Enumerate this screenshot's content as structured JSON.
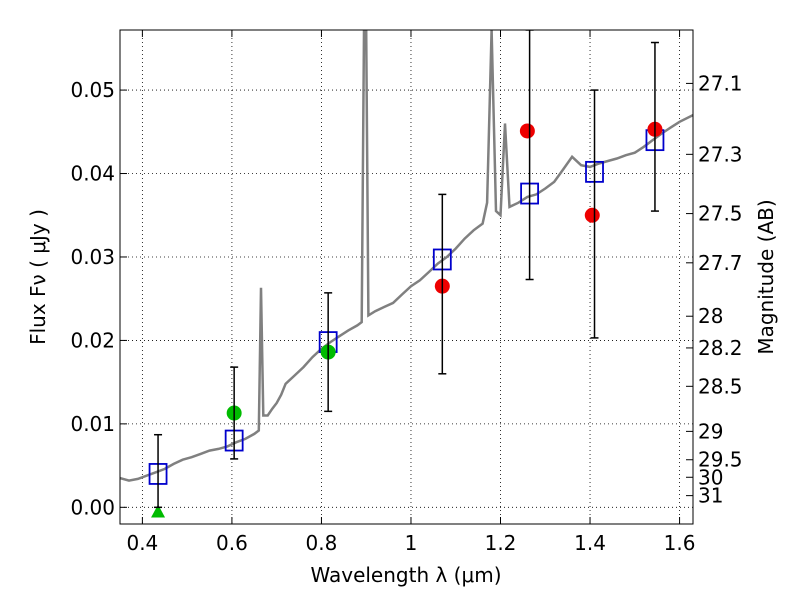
{
  "chart_data": {
    "type": "scatter",
    "title": "",
    "xlabel": "Wavelength  λ (μm)",
    "ylabel": "Flux  Fν  ( μJy )",
    "y2label": "Magnitude (AB)",
    "xlim": [
      0.35,
      1.63
    ],
    "ylim": [
      -0.002,
      0.0572
    ],
    "grid": true,
    "x_ticks": [
      0.4,
      0.6,
      0.8,
      1.0,
      1.2,
      1.4,
      1.6
    ],
    "x_tick_labels": [
      "0.4",
      "0.6",
      "0.8",
      "1",
      "1.2",
      "1.4",
      "1.6"
    ],
    "y_ticks": [
      0.0,
      0.01,
      0.02,
      0.03,
      0.04,
      0.05
    ],
    "y_tick_labels": [
      "0.00",
      "0.01",
      "0.02",
      "0.03",
      "0.04",
      "0.05"
    ],
    "y2_ticks": [
      {
        "flux": 0.0508,
        "label": "27.1"
      },
      {
        "flux": 0.0423,
        "label": "27.3"
      },
      {
        "flux": 0.0352,
        "label": "27.5"
      },
      {
        "flux": 0.0293,
        "label": "27.7"
      },
      {
        "flux": 0.0229,
        "label": "28"
      },
      {
        "flux": 0.0191,
        "label": "28.2"
      },
      {
        "flux": 0.0145,
        "label": "28.5"
      },
      {
        "flux": 0.0091,
        "label": "29"
      },
      {
        "flux": 0.0057,
        "label": "29.5"
      },
      {
        "flux": 0.0036,
        "label": "30"
      },
      {
        "flux": 0.0014,
        "label": "31"
      }
    ],
    "series": [
      {
        "kind": "line",
        "color": "#808080",
        "points": [
          [
            0.35,
            0.0035
          ],
          [
            0.37,
            0.0032
          ],
          [
            0.39,
            0.0034
          ],
          [
            0.41,
            0.0038
          ],
          [
            0.43,
            0.0042
          ],
          [
            0.45,
            0.0046
          ],
          [
            0.47,
            0.0052
          ],
          [
            0.49,
            0.0057
          ],
          [
            0.51,
            0.006
          ],
          [
            0.53,
            0.0064
          ],
          [
            0.55,
            0.0068
          ],
          [
            0.57,
            0.007
          ],
          [
            0.59,
            0.0073
          ],
          [
            0.61,
            0.0078
          ],
          [
            0.63,
            0.0082
          ],
          [
            0.65,
            0.0088
          ],
          [
            0.66,
            0.0092
          ],
          [
            0.665,
            0.0263
          ],
          [
            0.67,
            0.011
          ],
          [
            0.68,
            0.011
          ],
          [
            0.69,
            0.0118
          ],
          [
            0.7,
            0.0125
          ],
          [
            0.71,
            0.0135
          ],
          [
            0.72,
            0.0148
          ],
          [
            0.74,
            0.0158
          ],
          [
            0.76,
            0.0168
          ],
          [
            0.78,
            0.018
          ],
          [
            0.8,
            0.019
          ],
          [
            0.82,
            0.0198
          ],
          [
            0.84,
            0.0205
          ],
          [
            0.86,
            0.0212
          ],
          [
            0.88,
            0.0218
          ],
          [
            0.89,
            0.0222
          ],
          [
            0.895,
            0.0572
          ],
          [
            0.9,
            0.0572
          ],
          [
            0.905,
            0.023
          ],
          [
            0.92,
            0.0235
          ],
          [
            0.94,
            0.024
          ],
          [
            0.96,
            0.0245
          ],
          [
            0.98,
            0.0255
          ],
          [
            1.0,
            0.0265
          ],
          [
            1.02,
            0.0272
          ],
          [
            1.04,
            0.0282
          ],
          [
            1.06,
            0.0292
          ],
          [
            1.08,
            0.03
          ],
          [
            1.1,
            0.031
          ],
          [
            1.12,
            0.0322
          ],
          [
            1.14,
            0.0332
          ],
          [
            1.16,
            0.034
          ],
          [
            1.17,
            0.0365
          ],
          [
            1.18,
            0.0572
          ],
          [
            1.19,
            0.0355
          ],
          [
            1.2,
            0.035
          ],
          [
            1.21,
            0.046
          ],
          [
            1.22,
            0.036
          ],
          [
            1.24,
            0.0365
          ],
          [
            1.26,
            0.0372
          ],
          [
            1.28,
            0.0375
          ],
          [
            1.3,
            0.0382
          ],
          [
            1.32,
            0.039
          ],
          [
            1.34,
            0.0405
          ],
          [
            1.36,
            0.042
          ],
          [
            1.38,
            0.041
          ],
          [
            1.4,
            0.0408
          ],
          [
            1.42,
            0.0412
          ],
          [
            1.44,
            0.0415
          ],
          [
            1.46,
            0.0418
          ],
          [
            1.48,
            0.0422
          ],
          [
            1.5,
            0.0425
          ],
          [
            1.52,
            0.0432
          ],
          [
            1.54,
            0.044
          ],
          [
            1.56,
            0.0448
          ],
          [
            1.58,
            0.0455
          ],
          [
            1.6,
            0.0462
          ],
          [
            1.63,
            0.047
          ]
        ]
      },
      {
        "kind": "squares",
        "color": "#0000cc",
        "points": [
          [
            0.435,
            0.004
          ],
          [
            0.605,
            0.008
          ],
          [
            0.815,
            0.0198
          ],
          [
            1.07,
            0.0297
          ],
          [
            1.265,
            0.0376
          ],
          [
            1.41,
            0.0402
          ],
          [
            1.545,
            0.044
          ]
        ]
      },
      {
        "kind": "circles",
        "color": "#00bb00",
        "points": [
          [
            0.605,
            0.0113
          ],
          [
            0.815,
            0.0186
          ]
        ]
      },
      {
        "kind": "triangles",
        "color": "#00bb00",
        "points": [
          [
            0.435,
            -0.0005
          ]
        ]
      },
      {
        "kind": "circles",
        "color": "#ee0000",
        "points": [
          [
            1.07,
            0.0265
          ],
          [
            1.26,
            0.0451
          ],
          [
            1.405,
            0.035
          ],
          [
            1.545,
            0.0453
          ]
        ]
      },
      {
        "kind": "errorbars",
        "color": "#000000",
        "points": [
          {
            "x": 0.435,
            "lo": 0.0,
            "hi": 0.0087
          },
          {
            "x": 0.605,
            "lo": 0.0058,
            "hi": 0.0168
          },
          {
            "x": 0.815,
            "lo": 0.0115,
            "hi": 0.0257
          },
          {
            "x": 1.07,
            "lo": 0.016,
            "hi": 0.0375
          },
          {
            "x": 1.265,
            "lo": 0.0273,
            "hi": 0.0572
          },
          {
            "x": 1.41,
            "lo": 0.0203,
            "hi": 0.05
          },
          {
            "x": 1.545,
            "lo": 0.0355,
            "hi": 0.0557
          }
        ]
      }
    ]
  }
}
